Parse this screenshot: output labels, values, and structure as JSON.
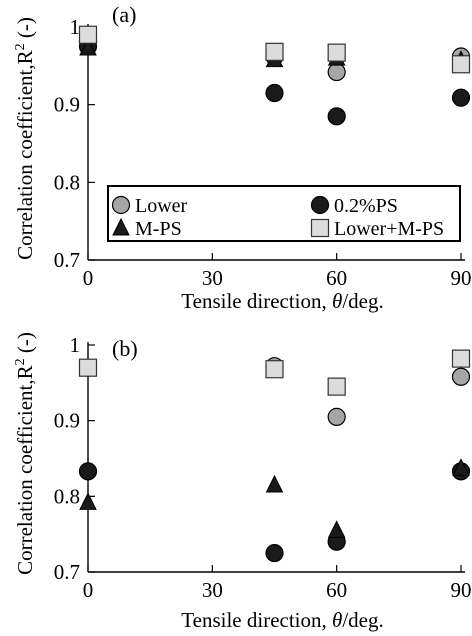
{
  "chart_data": [
    {
      "type": "scatter",
      "panel_label": "(a)",
      "xlabel_parts": [
        "Tensile direction, ",
        "θ",
        "/deg."
      ],
      "ylabel_parts": [
        "Correlation coefficient,R",
        "2",
        " (-)"
      ],
      "xlim": [
        0,
        90
      ],
      "ylim": [
        0.7,
        1.0
      ],
      "xticks": [
        0,
        30,
        60,
        90
      ],
      "yticks": [
        0.7,
        0.8,
        0.9,
        1.0
      ],
      "ytick_labels": [
        "0.7",
        "0.8",
        "0.9",
        "1"
      ],
      "legend_position": "lower-center",
      "series": [
        {
          "name": "Lower",
          "marker": "circle",
          "color": "#a6a6a6",
          "x": [
            0,
            45,
            60,
            90
          ],
          "y": [
            0.982,
            0.962,
            0.942,
            0.962
          ]
        },
        {
          "name": "0.2%PS",
          "marker": "circle",
          "color": "#1a1a1a",
          "x": [
            0,
            45,
            60,
            90
          ],
          "y": [
            0.975,
            0.915,
            0.885,
            0.909
          ]
        },
        {
          "name": "M-PS",
          "marker": "triangle",
          "color": "#1a1a1a",
          "x": [
            0,
            45,
            60,
            90
          ],
          "y": [
            0.973,
            0.958,
            0.96,
            0.957
          ]
        },
        {
          "name": "Lower+M-PS",
          "marker": "square",
          "color": "#dcdcdc",
          "x": [
            0,
            45,
            60,
            90
          ],
          "y": [
            0.99,
            0.968,
            0.967,
            0.952
          ]
        }
      ]
    },
    {
      "type": "scatter",
      "panel_label": "(b)",
      "xlabel_parts": [
        "Tensile direction, ",
        "θ",
        "/deg."
      ],
      "ylabel_parts": [
        "Correlation coefficient,R",
        "2",
        " (-)"
      ],
      "xlim": [
        0,
        90
      ],
      "ylim": [
        0.7,
        1.0
      ],
      "xticks": [
        0,
        30,
        60,
        90
      ],
      "yticks": [
        0.7,
        0.8,
        0.9,
        1.0
      ],
      "ytick_labels": [
        "0.7",
        "0.8",
        "0.9",
        "1"
      ],
      "series": [
        {
          "name": "Lower",
          "marker": "circle",
          "color": "#a6a6a6",
          "x": [
            0,
            45,
            60,
            90
          ],
          "y": [
            0.97,
            0.972,
            0.905,
            0.958
          ]
        },
        {
          "name": "0.2%PS",
          "marker": "circle",
          "color": "#1a1a1a",
          "x": [
            0,
            45,
            60,
            90
          ],
          "y": [
            0.833,
            0.725,
            0.74,
            0.833
          ]
        },
        {
          "name": "M-PS",
          "marker": "triangle",
          "color": "#1a1a1a",
          "x": [
            0,
            45,
            60,
            90
          ],
          "y": [
            0.792,
            0.815,
            0.755,
            0.837
          ]
        },
        {
          "name": "Lower+M-PS",
          "marker": "square",
          "color": "#dcdcdc",
          "x": [
            0,
            45,
            60,
            90
          ],
          "y": [
            0.97,
            0.968,
            0.945,
            0.982
          ]
        }
      ]
    }
  ]
}
